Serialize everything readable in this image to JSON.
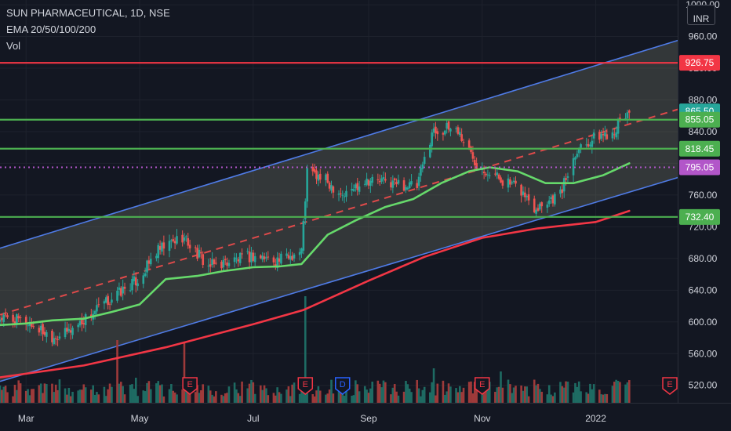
{
  "header": {
    "title": "SUN PHARMACEUTICAL, 1D, NSE",
    "indicator": "EMA 20/50/100/200",
    "volume_label": "Vol",
    "currency": "INR"
  },
  "colors": {
    "background": "#131722",
    "channel_line": "#4f7be6",
    "channel_fill": "#787b6a",
    "resistance_red": "#f23645",
    "support_green": "#4caf50",
    "dotted_purple": "#b256c9",
    "ema_green": "#66d96b",
    "ema_red": "#f23645",
    "candle_up": "#26a69a",
    "candle_down": "#ef5350",
    "volume_up": "#1e6b63",
    "volume_down": "#9e3a3a",
    "earnings_badge": "#f23645",
    "dividend_badge": "#2962ff",
    "axis_text": "#d1d4dc"
  },
  "chart_data": {
    "type": "candlestick",
    "symbol": "SUN PHARMACEUTICAL",
    "interval": "1D",
    "exchange": "NSE",
    "currency": "INR",
    "ylim": [
      498,
      1006
    ],
    "y_ticks": [
      520.0,
      560.0,
      600.0,
      640.0,
      680.0,
      720.0,
      760.0,
      800.0,
      840.0,
      880.0,
      920.0,
      960.0,
      1000.0
    ],
    "y_tick_labels": [
      "520.00",
      "560.00",
      "600.00",
      "640.00",
      "680.00",
      "720.00",
      "760.00",
      "800.00",
      "840.00",
      "880.00",
      "920.00",
      "960.00",
      "1000.00"
    ],
    "x_range": [
      "2021-02-15",
      "2022-02-14"
    ],
    "x_ticks": [
      {
        "label": "Mar",
        "date": "2021-03-01"
      },
      {
        "label": "May",
        "date": "2021-05-01"
      },
      {
        "label": "Jul",
        "date": "2021-07-01"
      },
      {
        "label": "Sep",
        "date": "2021-09-01"
      },
      {
        "label": "Nov",
        "date": "2021-11-01"
      },
      {
        "label": "2022",
        "date": "2022-01-01"
      }
    ],
    "price_levels": [
      {
        "value": 926.75,
        "label": "926.75",
        "kind": "resistance",
        "color": "#f23645",
        "style": "solid"
      },
      {
        "value": 865.5,
        "label": "865.50",
        "kind": "last_price",
        "color": "#26a69a",
        "style": "solid"
      },
      {
        "value": 855.05,
        "label": "855.05",
        "kind": "level",
        "color": "#4caf50",
        "style": "solid"
      },
      {
        "value": 818.45,
        "label": "818.45",
        "kind": "level",
        "color": "#4caf50",
        "style": "solid"
      },
      {
        "value": 795.05,
        "label": "795.05",
        "kind": "level",
        "color": "#b256c9",
        "style": "dotted"
      },
      {
        "value": 732.4,
        "label": "732.40",
        "kind": "support",
        "color": "#4caf50",
        "style": "solid"
      }
    ],
    "channel": {
      "upper": [
        {
          "date": "2021-02-15",
          "value": 693
        },
        {
          "date": "2022-02-14",
          "value": 955
        }
      ],
      "lower": [
        {
          "date": "2021-02-15",
          "value": 525
        },
        {
          "date": "2022-02-14",
          "value": 782
        }
      ],
      "mid_dashed": [
        {
          "date": "2021-02-15",
          "value": 609
        },
        {
          "date": "2022-02-14",
          "value": 868
        }
      ]
    },
    "price_path": [
      {
        "date": "2021-02-15",
        "value": 605
      },
      {
        "date": "2021-03-01",
        "value": 600
      },
      {
        "date": "2021-03-15",
        "value": 582
      },
      {
        "date": "2021-03-22",
        "value": 585
      },
      {
        "date": "2021-04-05",
        "value": 610
      },
      {
        "date": "2021-04-19",
        "value": 635
      },
      {
        "date": "2021-05-01",
        "value": 655
      },
      {
        "date": "2021-05-10",
        "value": 688
      },
      {
        "date": "2021-05-24",
        "value": 708
      },
      {
        "date": "2021-06-07",
        "value": 670
      },
      {
        "date": "2021-06-21",
        "value": 678
      },
      {
        "date": "2021-07-01",
        "value": 683
      },
      {
        "date": "2021-07-15",
        "value": 678
      },
      {
        "date": "2021-07-27",
        "value": 690
      },
      {
        "date": "2021-07-30",
        "value": 790
      },
      {
        "date": "2021-08-09",
        "value": 778
      },
      {
        "date": "2021-08-19",
        "value": 760
      },
      {
        "date": "2021-08-30",
        "value": 780
      },
      {
        "date": "2021-09-15",
        "value": 775
      },
      {
        "date": "2021-09-27",
        "value": 770
      },
      {
        "date": "2021-10-05",
        "value": 840
      },
      {
        "date": "2021-10-18",
        "value": 845
      },
      {
        "date": "2021-10-29",
        "value": 800
      },
      {
        "date": "2021-11-08",
        "value": 785
      },
      {
        "date": "2021-11-22",
        "value": 765
      },
      {
        "date": "2021-11-29",
        "value": 745
      },
      {
        "date": "2021-12-13",
        "value": 762
      },
      {
        "date": "2021-12-22",
        "value": 820
      },
      {
        "date": "2022-01-03",
        "value": 835
      },
      {
        "date": "2022-01-10",
        "value": 840
      },
      {
        "date": "2022-01-19",
        "value": 865.5
      }
    ],
    "ema_series": [
      {
        "name": "EMA 50",
        "color": "#66d96b",
        "points": [
          {
            "date": "2021-02-15",
            "value": 596
          },
          {
            "date": "2021-03-01",
            "value": 598
          },
          {
            "date": "2021-03-15",
            "value": 602
          },
          {
            "date": "2021-04-01",
            "value": 604
          },
          {
            "date": "2021-04-15",
            "value": 612
          },
          {
            "date": "2021-05-01",
            "value": 622
          },
          {
            "date": "2021-05-15",
            "value": 654
          },
          {
            "date": "2021-06-01",
            "value": 658
          },
          {
            "date": "2021-06-15",
            "value": 664
          },
          {
            "date": "2021-07-01",
            "value": 669
          },
          {
            "date": "2021-07-15",
            "value": 670
          },
          {
            "date": "2021-07-27",
            "value": 673
          },
          {
            "date": "2021-08-10",
            "value": 710
          },
          {
            "date": "2021-08-25",
            "value": 728
          },
          {
            "date": "2021-09-10",
            "value": 745
          },
          {
            "date": "2021-09-25",
            "value": 755
          },
          {
            "date": "2021-10-10",
            "value": 775
          },
          {
            "date": "2021-10-25",
            "value": 790
          },
          {
            "date": "2021-11-05",
            "value": 795
          },
          {
            "date": "2021-11-20",
            "value": 790
          },
          {
            "date": "2021-12-05",
            "value": 775
          },
          {
            "date": "2021-12-20",
            "value": 775
          },
          {
            "date": "2022-01-05",
            "value": 785
          },
          {
            "date": "2022-01-19",
            "value": 800
          }
        ]
      },
      {
        "name": "EMA 200",
        "color": "#f23645",
        "points": [
          {
            "date": "2021-02-15",
            "value": 530
          },
          {
            "date": "2021-04-01",
            "value": 545
          },
          {
            "date": "2021-05-15",
            "value": 568
          },
          {
            "date": "2021-07-01",
            "value": 597
          },
          {
            "date": "2021-07-28",
            "value": 615
          },
          {
            "date": "2021-09-01",
            "value": 652
          },
          {
            "date": "2021-10-01",
            "value": 682
          },
          {
            "date": "2021-11-01",
            "value": 706
          },
          {
            "date": "2021-12-01",
            "value": 718
          },
          {
            "date": "2022-01-01",
            "value": 726
          },
          {
            "date": "2022-01-19",
            "value": 740
          }
        ]
      }
    ],
    "volume_axis_max": 100,
    "volume": [
      {
        "date": "2021-04-19",
        "value": 100,
        "up": false
      },
      {
        "date": "2021-04-29",
        "value": 40,
        "up": true
      },
      {
        "date": "2021-05-25",
        "value": 96,
        "up": false
      },
      {
        "date": "2021-07-29",
        "value": 170,
        "up": true
      },
      {
        "date": "2021-10-06",
        "value": 55,
        "up": true
      },
      {
        "date": "2021-11-11",
        "value": 50,
        "up": true
      }
    ],
    "events": [
      {
        "type": "earnings",
        "label": "E",
        "date": "2021-05-28"
      },
      {
        "type": "earnings",
        "label": "E",
        "date": "2021-07-29"
      },
      {
        "type": "dividend",
        "label": "D",
        "date": "2021-08-18"
      },
      {
        "type": "earnings",
        "label": "E",
        "date": "2021-11-01"
      },
      {
        "type": "earnings",
        "label": "E",
        "date": "2022-02-14"
      }
    ]
  }
}
